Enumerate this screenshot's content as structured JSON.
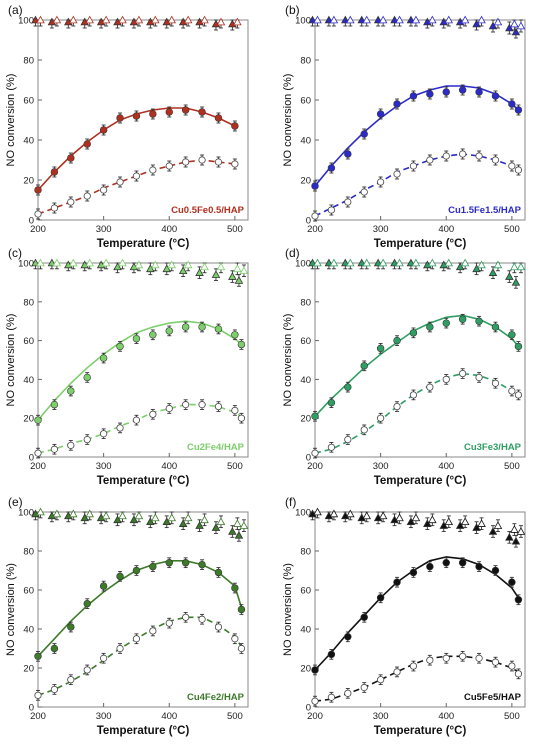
{
  "chart_data": [
    {
      "type": "scatter",
      "panel_label": "(a)",
      "sample_label": "Cu0.5Fe0.5/HAP",
      "color": "#b03020",
      "xlabel": "Temperature (°C)",
      "ylabel": "NO conversion (%)",
      "xlim": [
        200,
        520
      ],
      "ylim": [
        0,
        100
      ],
      "xticks": [
        200,
        300,
        400,
        500
      ],
      "yticks": [
        0,
        20,
        40,
        60,
        80,
        100
      ],
      "x": [
        200,
        225,
        250,
        275,
        300,
        325,
        350,
        375,
        400,
        425,
        450,
        475,
        500
      ],
      "series": [
        {
          "marker": "circle-filled",
          "values": [
            15,
            24,
            31,
            38,
            45,
            51,
            52,
            53,
            54,
            55,
            54,
            51,
            47
          ],
          "fit": [
            15,
            24,
            32,
            39,
            45,
            50,
            53,
            55,
            56,
            56,
            54,
            51,
            47
          ]
        },
        {
          "marker": "circle-open",
          "values": [
            3,
            6,
            9,
            12,
            15,
            19,
            22,
            25,
            27,
            29,
            30,
            29,
            28
          ],
          "fit": [
            3,
            6,
            9,
            12,
            16,
            19,
            22,
            25,
            27,
            29,
            30,
            29,
            28
          ]
        },
        {
          "marker": "triangle-filled",
          "values": [
            100,
            99,
            99,
            99,
            99,
            99,
            99,
            99,
            99,
            99,
            99,
            98,
            98
          ]
        },
        {
          "marker": "triangle-open",
          "values": [
            100,
            100,
            100,
            100,
            100,
            100,
            100,
            100,
            100,
            100,
            100,
            99,
            99
          ]
        }
      ]
    },
    {
      "type": "scatter",
      "panel_label": "(b)",
      "sample_label": "Cu1.5Fe1.5/HAP",
      "color": "#2b2bc8",
      "xlabel": "Temperature (°C)",
      "ylabel": "NO conversion (%)",
      "xlim": [
        200,
        520
      ],
      "ylim": [
        0,
        100
      ],
      "xticks": [
        200,
        300,
        400,
        500
      ],
      "yticks": [
        0,
        20,
        40,
        60,
        80,
        100
      ],
      "x": [
        200,
        225,
        250,
        275,
        300,
        325,
        350,
        375,
        400,
        425,
        450,
        475,
        500,
        510
      ],
      "series": [
        {
          "marker": "circle-filled",
          "values": [
            17,
            26,
            33,
            43,
            53,
            58,
            62,
            63,
            64,
            65,
            64,
            62,
            58,
            55
          ],
          "fit": [
            17,
            27,
            36,
            44,
            51,
            57,
            62,
            65,
            67,
            67,
            66,
            63,
            58,
            55
          ]
        },
        {
          "marker": "circle-open",
          "values": [
            2,
            5,
            9,
            14,
            19,
            23,
            27,
            30,
            32,
            33,
            32,
            30,
            27,
            25
          ],
          "fit": [
            2,
            6,
            10,
            15,
            19,
            24,
            27,
            30,
            32,
            33,
            32,
            30,
            27,
            25
          ]
        },
        {
          "marker": "triangle-filled",
          "values": [
            100,
            100,
            100,
            100,
            100,
            100,
            100,
            99,
            99,
            99,
            98,
            97,
            96,
            94
          ]
        },
        {
          "marker": "triangle-open",
          "values": [
            100,
            100,
            100,
            100,
            100,
            100,
            100,
            100,
            100,
            100,
            100,
            99,
            98,
            97
          ]
        }
      ]
    },
    {
      "type": "scatter",
      "panel_label": "(c)",
      "sample_label": "Cu2Fe4/HAP",
      "color": "#7ccf6a",
      "xlabel": "Temperature (°C)",
      "ylabel": "NO conversion (%)",
      "xlim": [
        200,
        520
      ],
      "ylim": [
        0,
        100
      ],
      "xticks": [
        200,
        300,
        400,
        500
      ],
      "yticks": [
        0,
        20,
        40,
        60,
        80,
        100
      ],
      "x": [
        200,
        225,
        250,
        275,
        300,
        325,
        350,
        375,
        400,
        425,
        450,
        475,
        500,
        510
      ],
      "series": [
        {
          "marker": "circle-filled",
          "values": [
            19,
            27,
            34,
            41,
            51,
            57,
            61,
            63,
            65,
            67,
            67,
            66,
            63,
            58
          ],
          "fit": [
            19,
            29,
            38,
            46,
            53,
            59,
            64,
            67,
            69,
            70,
            69,
            66,
            61,
            58
          ]
        },
        {
          "marker": "circle-open",
          "values": [
            2,
            4,
            6,
            9,
            12,
            15,
            19,
            22,
            25,
            27,
            27,
            26,
            24,
            20
          ],
          "fit": [
            2,
            4,
            7,
            9,
            12,
            16,
            19,
            23,
            25,
            27,
            27,
            26,
            23,
            21
          ]
        },
        {
          "marker": "triangle-filled",
          "values": [
            100,
            100,
            99,
            99,
            99,
            98,
            98,
            97,
            97,
            96,
            95,
            94,
            93,
            91
          ]
        },
        {
          "marker": "triangle-open",
          "values": [
            100,
            100,
            100,
            100,
            100,
            100,
            99,
            99,
            99,
            99,
            98,
            98,
            97,
            96
          ]
        }
      ]
    },
    {
      "type": "scatter",
      "panel_label": "(d)",
      "sample_label": "Cu3Fe3/HAP",
      "color": "#2f9e63",
      "xlabel": "Temperature (°C)",
      "ylabel": "NO conversion (%)",
      "xlim": [
        200,
        520
      ],
      "ylim": [
        0,
        100
      ],
      "xticks": [
        200,
        300,
        400,
        500
      ],
      "yticks": [
        0,
        20,
        40,
        60,
        80,
        100
      ],
      "x": [
        200,
        225,
        250,
        275,
        300,
        325,
        350,
        375,
        400,
        425,
        450,
        475,
        500,
        510
      ],
      "series": [
        {
          "marker": "circle-filled",
          "values": [
            21,
            28,
            36,
            47,
            56,
            60,
            64,
            67,
            69,
            71,
            70,
            67,
            63,
            57
          ],
          "fit": [
            21,
            30,
            38,
            46,
            53,
            59,
            65,
            69,
            72,
            73,
            71,
            67,
            61,
            57
          ]
        },
        {
          "marker": "circle-open",
          "values": [
            2,
            5,
            9,
            14,
            20,
            26,
            32,
            36,
            40,
            43,
            41,
            38,
            34,
            32
          ],
          "fit": [
            2,
            4,
            8,
            13,
            19,
            26,
            32,
            37,
            41,
            43,
            42,
            39,
            34,
            32
          ]
        },
        {
          "marker": "triangle-filled",
          "values": [
            100,
            100,
            100,
            100,
            100,
            100,
            100,
            99,
            99,
            98,
            97,
            95,
            93,
            90
          ]
        },
        {
          "marker": "triangle-open",
          "values": [
            100,
            100,
            100,
            100,
            100,
            100,
            100,
            100,
            100,
            100,
            99,
            99,
            98,
            98
          ]
        }
      ]
    },
    {
      "type": "scatter",
      "panel_label": "(e)",
      "sample_label": "Cu4Fe2/HAP",
      "color": "#3d7a2a",
      "xlabel": "Temperature (°C)",
      "ylabel": "NO conversion (%)",
      "xlim": [
        200,
        520
      ],
      "ylim": [
        0,
        100
      ],
      "xticks": [
        200,
        300,
        400,
        500
      ],
      "yticks": [
        0,
        20,
        40,
        60,
        80,
        100
      ],
      "x": [
        200,
        225,
        250,
        275,
        300,
        325,
        350,
        375,
        400,
        425,
        450,
        475,
        500,
        510
      ],
      "series": [
        {
          "marker": "circle-filled",
          "values": [
            26,
            30,
            41,
            53,
            62,
            67,
            70,
            72,
            74,
            74,
            73,
            69,
            61,
            50
          ],
          "fit": [
            26,
            35,
            44,
            52,
            59,
            65,
            70,
            73,
            75,
            75,
            73,
            69,
            62,
            51
          ]
        },
        {
          "marker": "circle-open",
          "values": [
            6,
            9,
            14,
            19,
            25,
            30,
            35,
            39,
            43,
            46,
            45,
            41,
            35,
            30
          ],
          "fit": [
            6,
            9,
            13,
            18,
            24,
            30,
            35,
            40,
            44,
            46,
            46,
            42,
            36,
            31
          ]
        },
        {
          "marker": "triangle-filled",
          "values": [
            99,
            98,
            98,
            97,
            97,
            96,
            96,
            95,
            95,
            94,
            93,
            92,
            90,
            88
          ]
        },
        {
          "marker": "triangle-open",
          "values": [
            100,
            99,
            99,
            99,
            98,
            98,
            98,
            97,
            97,
            97,
            96,
            95,
            94,
            93
          ]
        }
      ]
    },
    {
      "type": "scatter",
      "panel_label": "(f)",
      "sample_label": "Cu5Fe5/HAP",
      "color": "#111111",
      "xlabel": "Temperature (°C)",
      "ylabel": "NO conversion (%)",
      "xlim": [
        200,
        520
      ],
      "ylim": [
        0,
        100
      ],
      "xticks": [
        200,
        300,
        400,
        500
      ],
      "yticks": [
        0,
        20,
        40,
        60,
        80,
        100
      ],
      "x": [
        200,
        225,
        250,
        275,
        300,
        325,
        350,
        375,
        400,
        425,
        450,
        475,
        500,
        510
      ],
      "series": [
        {
          "marker": "circle-filled",
          "values": [
            19,
            27,
            36,
            46,
            56,
            64,
            69,
            72,
            74,
            74,
            72,
            70,
            64,
            55
          ],
          "fit": [
            19,
            28,
            38,
            47,
            56,
            64,
            70,
            75,
            77,
            76,
            73,
            68,
            61,
            56
          ]
        },
        {
          "marker": "circle-open",
          "values": [
            3,
            5,
            7,
            10,
            14,
            18,
            21,
            24,
            25,
            26,
            25,
            23,
            21,
            17
          ],
          "fit": [
            3,
            4,
            7,
            10,
            14,
            18,
            22,
            25,
            26,
            26,
            25,
            23,
            20,
            18
          ]
        },
        {
          "marker": "triangle-filled",
          "values": [
            99,
            98,
            98,
            97,
            97,
            96,
            95,
            94,
            93,
            93,
            92,
            90,
            87,
            85
          ]
        },
        {
          "marker": "triangle-open",
          "values": [
            100,
            99,
            99,
            98,
            98,
            97,
            97,
            96,
            95,
            95,
            94,
            93,
            91,
            90
          ]
        }
      ]
    }
  ]
}
